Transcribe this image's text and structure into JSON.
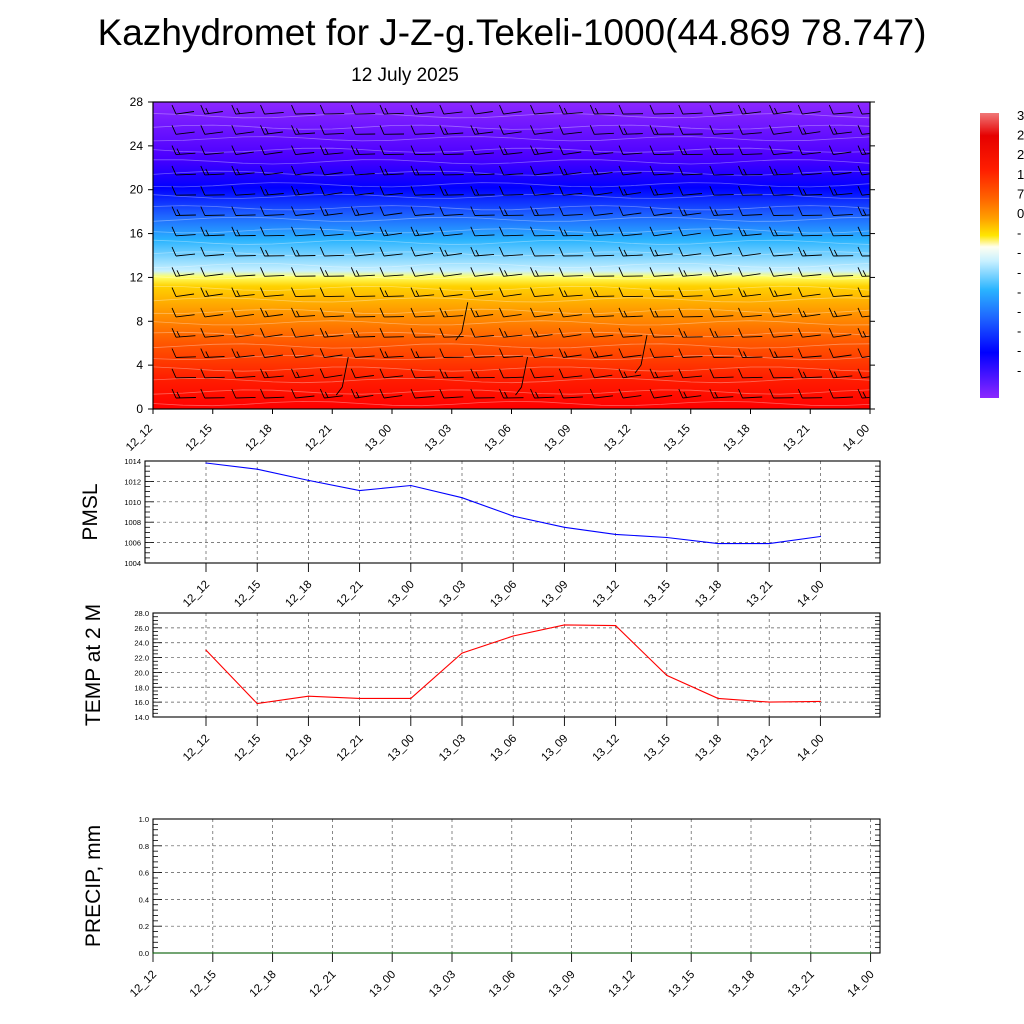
{
  "title": "Kazhydromet for J-Z-g.Tekeli-1000(44.869 78.747)",
  "subtitle": "12 July 2025",
  "time_labels": [
    "12_12",
    "12_15",
    "12_18",
    "12_21",
    "13_00",
    "13_03",
    "13_06",
    "13_09",
    "13_12",
    "13_15",
    "13_18",
    "13_21",
    "14_00"
  ],
  "chart_data": [
    {
      "type": "heatmap",
      "x": [
        "12_12",
        "12_15",
        "12_18",
        "12_21",
        "13_00",
        "13_03",
        "13_06",
        "13_09",
        "13_12",
        "13_15",
        "13_18",
        "13_21",
        "14_00"
      ],
      "ylim": [
        0,
        28
      ],
      "yticks": [
        0,
        4,
        8,
        12,
        16,
        20,
        24,
        28
      ],
      "legend": "right",
      "colorbar_labels_visible": [
        "3",
        "2",
        "2",
        "1",
        "7",
        "0",
        "-",
        "-",
        "-",
        "-",
        "-",
        "-",
        "-",
        "-"
      ],
      "color_stops": [
        "#ff0000",
        "#ff3c00",
        "#ff8000",
        "#ffcc00",
        "#ffff80",
        "#c8f0ff",
        "#2ab4ff",
        "#1e64ff",
        "#0000ff",
        "#4b00ff",
        "#8c28ff"
      ],
      "description_note": "",
      "has_wind_barbs": true
    },
    {
      "type": "line",
      "ylabel": "PMSL",
      "x": [
        "12_12",
        "12_15",
        "12_18",
        "12_21",
        "13_00",
        "13_03",
        "13_06",
        "13_09",
        "13_12",
        "13_15",
        "13_18",
        "13_21",
        "14_00"
      ],
      "series": [
        {
          "color": "#0000ff",
          "values": [
            1013.8,
            1013.2,
            1012.1,
            1011.1,
            1011.6,
            1010.4,
            1008.6,
            1007.5,
            1006.8,
            1006.5,
            1005.9,
            1005.9,
            1006.6
          ]
        }
      ],
      "ylim": [
        1004,
        1014
      ],
      "yticks": [
        1004,
        1006,
        1008,
        1010,
        1012,
        1014
      ],
      "ytick_labels": [
        "1004",
        "1006",
        "1008",
        "1010",
        "1012",
        "1014"
      ],
      "grid": true
    },
    {
      "type": "line",
      "ylabel": "TEMP at 2 M",
      "x": [
        "12_12",
        "12_15",
        "12_18",
        "12_21",
        "13_00",
        "13_03",
        "13_06",
        "13_09",
        "13_12",
        "13_15",
        "13_18",
        "13_21",
        "14_00"
      ],
      "series": [
        {
          "color": "#ff0000",
          "values": [
            23.0,
            15.8,
            16.8,
            16.5,
            16.5,
            22.6,
            24.9,
            26.4,
            26.3,
            19.6,
            16.5,
            16.0,
            16.1
          ]
        }
      ],
      "ylim": [
        14,
        28
      ],
      "yticks": [
        14,
        16,
        18,
        20,
        22,
        24,
        26,
        28
      ],
      "ytick_labels": [
        "14.0",
        "16.0",
        "18.0",
        "20.0",
        "22.0",
        "24.0",
        "26.0",
        "28.0"
      ],
      "grid": true
    },
    {
      "type": "line",
      "ylabel": "PRECIP, mm",
      "x": [
        "12_12",
        "12_15",
        "12_18",
        "12_21",
        "13_00",
        "13_03",
        "13_06",
        "13_09",
        "13_12",
        "13_15",
        "13_18",
        "13_21",
        "14_00"
      ],
      "series": [
        {
          "color": "#006400",
          "values": [
            0,
            0,
            0,
            0,
            0,
            0,
            0,
            0,
            0,
            0,
            0,
            0,
            0
          ]
        }
      ],
      "ylim": [
        0,
        1
      ],
      "yticks": [
        0,
        0.2,
        0.4,
        0.6,
        0.8,
        1.0
      ],
      "ytick_labels": [
        "0.0",
        "0.2",
        "0.4",
        "0.6",
        "0.8",
        "1.0"
      ],
      "grid": true
    }
  ]
}
